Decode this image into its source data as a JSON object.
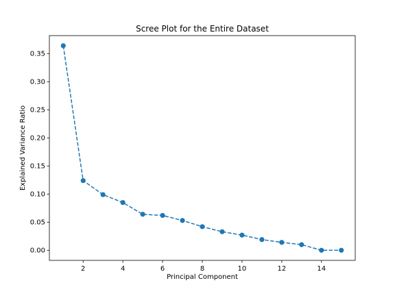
{
  "chart_data": {
    "type": "line",
    "title": "Scree Plot for the Entire Dataset",
    "xlabel": "Principal Component",
    "ylabel": "Explained Variance Ratio",
    "x": [
      1,
      2,
      3,
      4,
      5,
      6,
      7,
      8,
      9,
      10,
      11,
      12,
      13,
      14,
      15
    ],
    "series": [
      {
        "values": [
          0.364,
          0.124,
          0.099,
          0.085,
          0.064,
          0.062,
          0.053,
          0.042,
          0.033,
          0.027,
          0.019,
          0.014,
          0.01,
          0.0,
          0.0
        ],
        "color": "#1f77b4",
        "line_style": "dashed",
        "marker": "circle"
      }
    ],
    "xlim": [
      0.3,
      15.7
    ],
    "ylim": [
      -0.018,
      0.382
    ],
    "xticks": [
      2,
      4,
      6,
      8,
      10,
      12,
      14
    ],
    "yticks": [
      0.0,
      0.05,
      0.1,
      0.15,
      0.2,
      0.25,
      0.3,
      0.35
    ],
    "grid": false
  }
}
